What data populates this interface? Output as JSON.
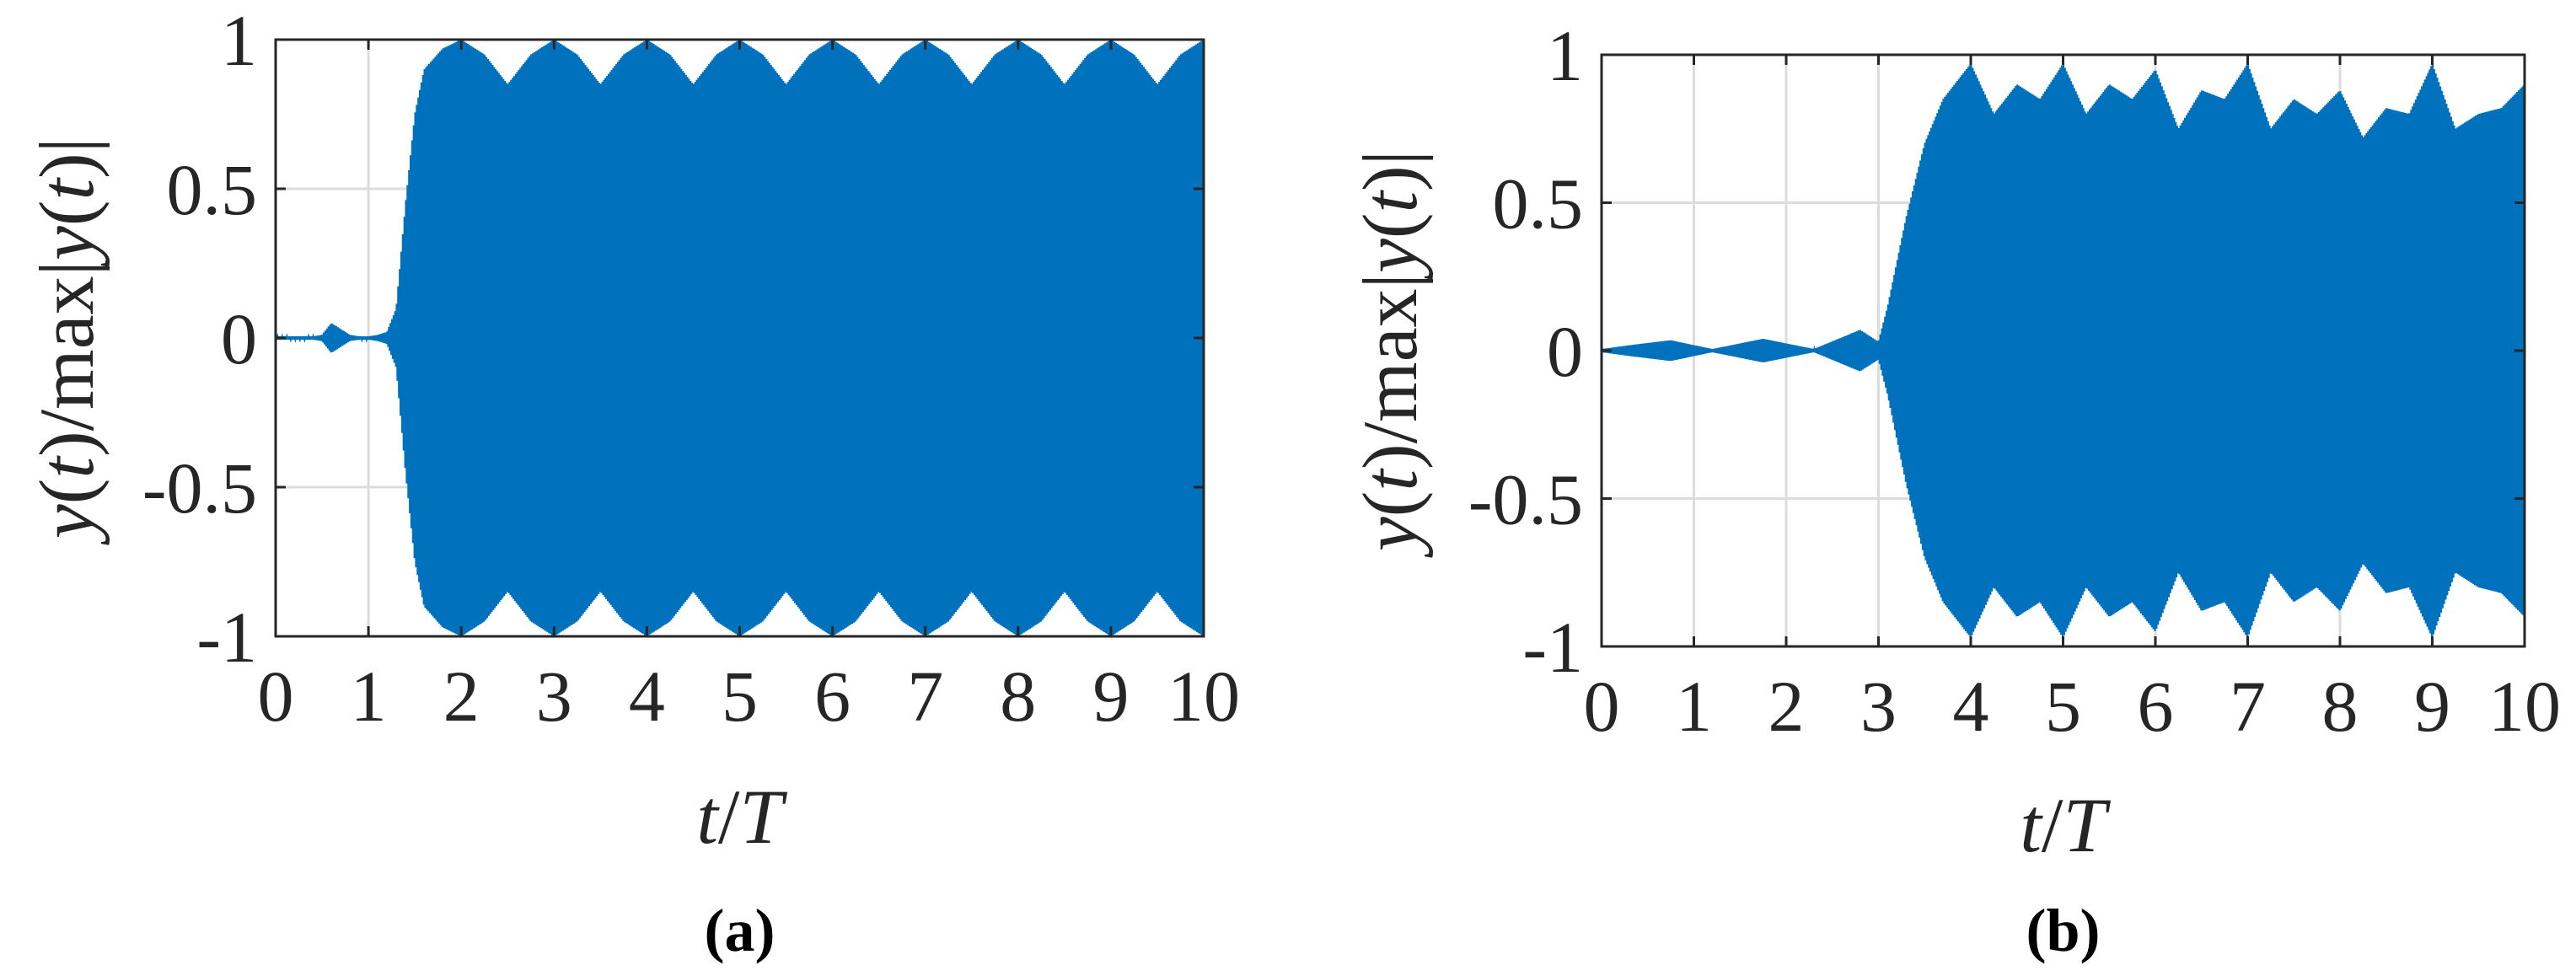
{
  "chart_data": [
    {
      "type": "line",
      "panel_label": "(a)",
      "xlabel": "t/T",
      "ylabel": "y(t)/max|y(t)|",
      "xlim": [
        0,
        10
      ],
      "ylim": [
        -1,
        1
      ],
      "xticks": [
        "0",
        "1",
        "2",
        "3",
        "4",
        "5",
        "6",
        "7",
        "8",
        "9",
        "10"
      ],
      "yticks": [
        "-1",
        "-0.5",
        "0",
        "0.5",
        "1"
      ],
      "grid": true,
      "series": [
        {
          "color": "#0072BD",
          "carrier_cycles_per_T": 60,
          "envelope": {
            "x": [
              0,
              0.4,
              0.5,
              0.6,
              0.7,
              0.8,
              0.9,
              1.0,
              1.1,
              1.2,
              1.3,
              1.4,
              1.5,
              1.6,
              1.8,
              2.0,
              2.25,
              2.5,
              2.75,
              3.0,
              3.25,
              3.5,
              3.75,
              4.0,
              4.25,
              4.5,
              4.75,
              5.0,
              5.25,
              5.5,
              5.75,
              6.0,
              6.25,
              6.5,
              6.75,
              7.0,
              7.25,
              7.5,
              7.75,
              8.0,
              8.25,
              8.5,
              8.75,
              9.0,
              9.25,
              9.5,
              9.75,
              10.0
            ],
            "y": [
              0.005,
              0.005,
              0.01,
              0.05,
              0.03,
              0.01,
              0.005,
              0.005,
              0.01,
              0.02,
              0.1,
              0.45,
              0.75,
              0.9,
              0.97,
              1.0,
              0.95,
              0.85,
              0.95,
              1.0,
              0.95,
              0.85,
              0.95,
              1.0,
              0.95,
              0.85,
              0.95,
              1.0,
              0.95,
              0.85,
              0.95,
              1.0,
              0.95,
              0.85,
              0.95,
              1.0,
              0.95,
              0.85,
              0.95,
              1.0,
              0.95,
              0.85,
              0.95,
              1.0,
              0.95,
              0.85,
              0.95,
              1.0
            ]
          }
        }
      ]
    },
    {
      "type": "line",
      "panel_label": "(b)",
      "xlabel": "t/T",
      "ylabel": "y(t)/max|y(t)|",
      "xlim": [
        0,
        10
      ],
      "ylim": [
        -1,
        1
      ],
      "xticks": [
        "0",
        "1",
        "2",
        "3",
        "4",
        "5",
        "6",
        "7",
        "8",
        "9",
        "10"
      ],
      "yticks": [
        "-1",
        "-0.5",
        "0",
        "0.5",
        "1"
      ],
      "grid": true,
      "series": [
        {
          "color": "#0072BD",
          "carrier_cycles_per_T": 60,
          "envelope": {
            "x": [
              0,
              0.35,
              0.75,
              1.2,
              1.75,
              2.3,
              2.8,
              3.0,
              3.1,
              3.3,
              3.5,
              3.7,
              4.0,
              4.25,
              4.5,
              4.75,
              5.0,
              5.25,
              5.5,
              5.75,
              6.0,
              6.25,
              6.5,
              6.75,
              7.0,
              7.25,
              7.5,
              7.75,
              8.0,
              8.25,
              8.5,
              8.75,
              9.0,
              9.25,
              9.5,
              9.75,
              10.0
            ],
            "y": [
              0.005,
              0.02,
              0.035,
              0.005,
              0.04,
              0.005,
              0.07,
              0.03,
              0.15,
              0.45,
              0.7,
              0.85,
              0.97,
              0.8,
              0.9,
              0.85,
              0.97,
              0.8,
              0.9,
              0.85,
              0.95,
              0.75,
              0.88,
              0.85,
              0.97,
              0.75,
              0.85,
              0.8,
              0.88,
              0.72,
              0.82,
              0.8,
              0.97,
              0.75,
              0.8,
              0.82,
              0.9
            ]
          }
        }
      ]
    }
  ]
}
